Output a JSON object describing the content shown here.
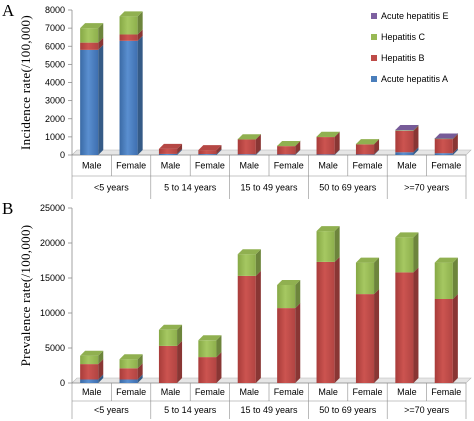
{
  "colors": {
    "acute_a": "#4a7ebb",
    "hep_b": "#be4b48",
    "hep_c": "#98b954",
    "acute_e": "#7d60a0"
  },
  "chart_data": [
    {
      "panel": "A",
      "type": "bar",
      "stacked": true,
      "ylabel": "Incidence rate(/100,000)",
      "ylim": [
        0,
        8000
      ],
      "yticks": [
        0,
        1000,
        2000,
        3000,
        4000,
        5000,
        6000,
        7000,
        8000
      ],
      "categories": [
        "Male",
        "Female",
        "Male",
        "Female",
        "Male",
        "Female",
        "Male",
        "Female",
        "Male",
        "Female"
      ],
      "groups": [
        "<5 years",
        "5 to 14 years",
        "15 to 49 years",
        "50 to 69 years",
        ">=70 years"
      ],
      "legend": [
        "Acute hepatitis E",
        "Hepatitis C",
        "Hepatitis B",
        "Acute hepatitis A"
      ],
      "series": [
        {
          "name": "Acute hepatitis A",
          "values": [
            5800,
            6300,
            60,
            50,
            40,
            30,
            30,
            30,
            150,
            100
          ]
        },
        {
          "name": "Hepatitis B",
          "values": [
            400,
            350,
            280,
            220,
            820,
            460,
            960,
            560,
            1180,
            780
          ]
        },
        {
          "name": "Hepatitis C",
          "values": [
            800,
            1000,
            0,
            0,
            10,
            10,
            20,
            10,
            30,
            20
          ]
        },
        {
          "name": "Acute hepatitis E",
          "values": [
            0,
            0,
            0,
            0,
            0,
            0,
            0,
            0,
            20,
            10
          ]
        }
      ]
    },
    {
      "panel": "B",
      "type": "bar",
      "stacked": true,
      "ylabel": "Prevalence rate(/100,000)",
      "ylim": [
        0,
        25000
      ],
      "yticks": [
        0,
        5000,
        10000,
        15000,
        20000,
        25000
      ],
      "categories": [
        "Male",
        "Female",
        "Male",
        "Female",
        "Male",
        "Female",
        "Male",
        "Female",
        "Male",
        "Female"
      ],
      "groups": [
        "<5 years",
        "5 to 14 years",
        "15 to 49 years",
        "50 to 69 years",
        ">=70 years"
      ],
      "series": [
        {
          "name": "Acute hepatitis A",
          "values": [
            500,
            500,
            0,
            0,
            0,
            0,
            0,
            0,
            0,
            0
          ]
        },
        {
          "name": "Hepatitis B",
          "values": [
            2200,
            1600,
            5300,
            3700,
            15300,
            10700,
            17300,
            12700,
            15800,
            12000
          ]
        },
        {
          "name": "Hepatitis C",
          "values": [
            1200,
            1300,
            2300,
            2400,
            3100,
            3300,
            4400,
            4500,
            5000,
            5200
          ]
        },
        {
          "name": "Acute hepatitis E",
          "values": [
            0,
            0,
            0,
            0,
            0,
            0,
            0,
            0,
            0,
            0
          ]
        }
      ]
    }
  ]
}
